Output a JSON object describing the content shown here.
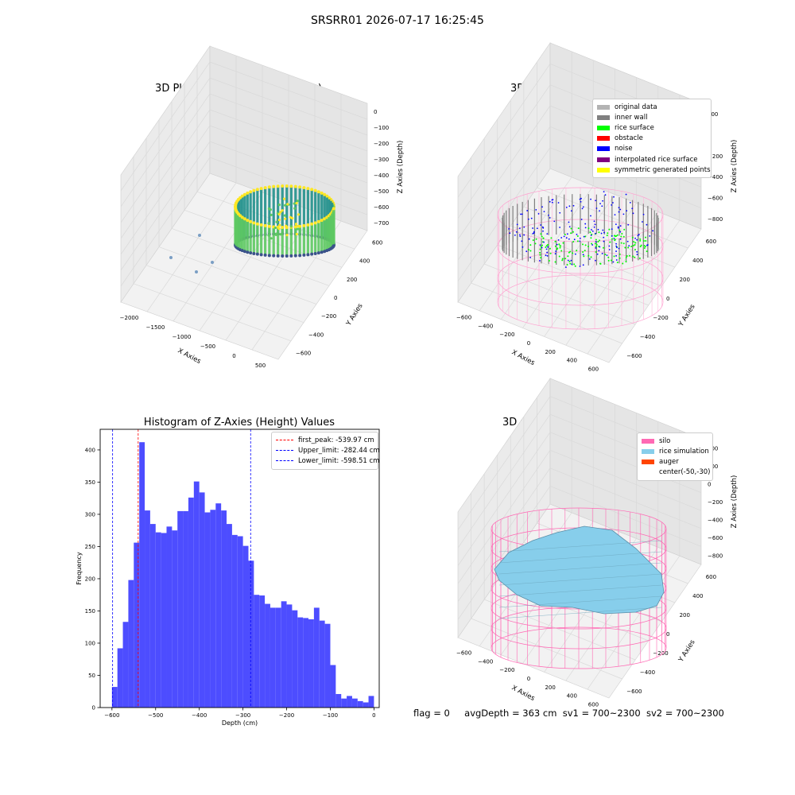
{
  "suptitle": "SRSRR01 2026-07-17 16:25:45",
  "panel1": {
    "title": "3D Plot of Silo Interior(row data)",
    "xlabel": "X Axies",
    "ylabel": "Y Axies",
    "zlabel": "Z Axies (Depth)",
    "xticks": [
      "−2000",
      "−1500",
      "−1000",
      "−500",
      "0",
      "500"
    ],
    "yticks": [
      "−600",
      "−400",
      "−200",
      "0",
      "200",
      "400",
      "600"
    ],
    "zticks": [
      "0",
      "−100",
      "−200",
      "−300",
      "−400",
      "−500",
      "−600",
      "−700"
    ]
  },
  "panel2": {
    "title": "3D classify of Silo Interior",
    "xlabel": "X Axies",
    "ylabel": "Y Axies",
    "zlabel": "Z Axies (Depth)",
    "xticks": [
      "−600",
      "−400",
      "−200",
      "0",
      "200",
      "400",
      "600"
    ],
    "yticks": [
      "−600",
      "−400",
      "−200",
      "0",
      "200",
      "400",
      "600"
    ],
    "zticks": [
      "200",
      "0",
      "−200",
      "−400",
      "−600",
      "−800"
    ],
    "zticks_top_partial": "00",
    "legend": [
      {
        "label": "original data",
        "color": "#b3b3b3"
      },
      {
        "label": "inner wall",
        "color": "#808080"
      },
      {
        "label": "rice surface",
        "color": "#00ff00"
      },
      {
        "label": "obstacle",
        "color": "#ff0000"
      },
      {
        "label": "noise",
        "color": "#0000ff"
      },
      {
        "label": "interpolated rice surface",
        "color": "#800080"
      },
      {
        "label": "symmetric generated points",
        "color": "#ffff00"
      }
    ]
  },
  "panel3": {
    "title": "Histogram of Z-Axies (Height) Values",
    "xlabel": "Depth (cm)",
    "ylabel": "Frequency",
    "legend": [
      {
        "label": "first_peak: -539.97 cm",
        "color": "#ff0000"
      },
      {
        "label": "Upper_limit: -282.44 cm",
        "color": "#0000ff"
      },
      {
        "label": "Lower_limit: -598.51 cm",
        "color": "#0000ff"
      }
    ]
  },
  "panel4": {
    "title": "3D simulation of Silo Interior",
    "xlabel": "X Axies",
    "ylabel": "Y Axies",
    "zlabel": "Z Axies (Depth)",
    "xticks": [
      "−600",
      "−400",
      "−200",
      "0",
      "200",
      "400",
      "600"
    ],
    "yticks": [
      "−600",
      "−400",
      "−200",
      "0",
      "200",
      "400",
      "600"
    ],
    "zticks": [
      "400",
      "200",
      "0",
      "−200",
      "−400",
      "−600",
      "−800"
    ],
    "legend": [
      {
        "label": "silo",
        "color": "#ff69b4"
      },
      {
        "label": "rice simulation",
        "color": "#87ceeb"
      },
      {
        "label": "auger",
        "color": "#ff4500"
      },
      {
        "label": "center(-50,-30)",
        "color": ""
      }
    ]
  },
  "status": {
    "flag": "flag = 0",
    "avg": "avgDepth = 363 cm",
    "sv1": "sv1 = 700~2300",
    "sv2": "sv2 = 700~2300"
  },
  "colors": {
    "bar": "#4d4dff",
    "grid": "#d9d9d9",
    "pane": "#f2f2f2",
    "pink": "#ff69b4",
    "sky": "#87ceeb",
    "gray": "#808080",
    "green": "#00ff00",
    "blue": "#0000ff"
  },
  "chart_data": [
    {
      "type": "bar",
      "title": "Histogram of Z-Axies (Height) Values",
      "xlabel": "Depth (cm)",
      "ylabel": "Frequency",
      "xlim": [
        -627,
        12
      ],
      "ylim": [
        0,
        432
      ],
      "xticks": [
        -600,
        -500,
        -400,
        -300,
        -200,
        -100,
        0
      ],
      "yticks": [
        0,
        50,
        100,
        150,
        200,
        250,
        300,
        350,
        400
      ],
      "bin_start": -600,
      "bin_width": 12.5,
      "values": [
        32,
        92,
        133,
        198,
        256,
        412,
        306,
        285,
        272,
        271,
        281,
        275,
        305,
        305,
        326,
        351,
        334,
        303,
        307,
        317,
        306,
        285,
        268,
        266,
        251,
        228,
        175,
        174,
        161,
        155,
        155,
        165,
        160,
        151,
        140,
        139,
        137,
        155,
        135,
        130,
        66,
        21,
        14,
        18,
        14,
        10,
        8,
        18
      ],
      "vlines": [
        {
          "name": "first_peak",
          "x": -539.97,
          "color": "#ff0000"
        },
        {
          "name": "Upper_limit",
          "x": -282.44,
          "color": "#0000ff"
        },
        {
          "name": "Lower_limit",
          "x": -598.51,
          "color": "#0000ff"
        }
      ],
      "legend_position": "top-right"
    },
    {
      "type": "scatter",
      "title": "3D Plot of Silo Interior(row data)",
      "projection": "3d",
      "xlim": [
        -2250,
        650
      ],
      "ylim": [
        -700,
        700
      ],
      "zlim": [
        -780,
        20
      ],
      "colormap": "viridis",
      "outliers": [
        [
          -2000,
          -300,
          -400
        ],
        [
          -1700,
          -100,
          -350
        ],
        [
          -1500,
          100,
          -500
        ],
        [
          -1200,
          -200,
          -420
        ]
      ]
    },
    {
      "type": "scatter",
      "title": "3D classify of Silo Interior",
      "projection": "3d",
      "xlim": [
        -700,
        700
      ],
      "ylim": [
        -700,
        700
      ],
      "zlim": [
        -900,
        350
      ],
      "series": [
        {
          "name": "inner wall",
          "color": "#808080"
        },
        {
          "name": "rice surface",
          "color": "#00ff00"
        },
        {
          "name": "noise",
          "color": "#0000ff"
        }
      ],
      "legend_position": "top-right"
    },
    {
      "type": "area",
      "title": "3D simulation of Silo Interior",
      "projection": "3d",
      "xlim": [
        -700,
        700
      ],
      "ylim": [
        -700,
        700
      ],
      "zlim": [
        -900,
        480
      ],
      "center": [
        -50,
        -30
      ],
      "legend_position": "top-right"
    }
  ]
}
